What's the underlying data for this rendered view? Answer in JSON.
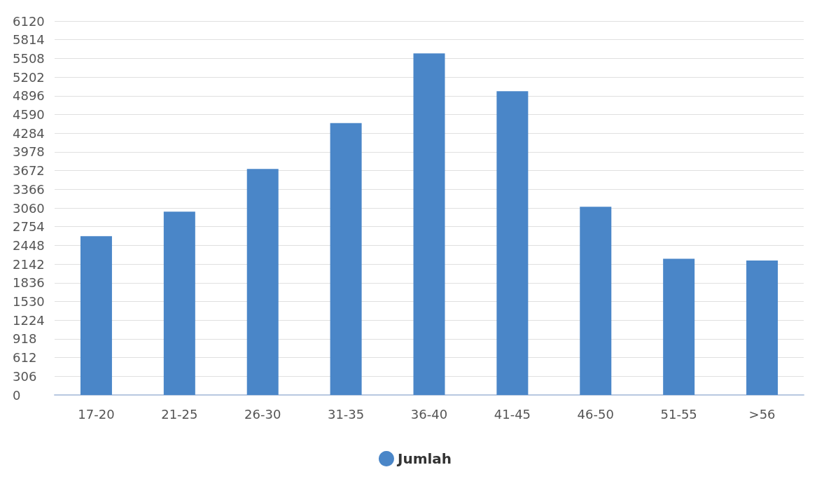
{
  "chart_data": {
    "type": "bar",
    "categories": [
      "17-20",
      "21-25",
      "26-30",
      "31-35",
      "36-40",
      "41-45",
      "46-50",
      "51-55",
      ">56"
    ],
    "series": [
      {
        "name": "Jumlah",
        "color": "#4a86c8",
        "values": [
          2600,
          3000,
          3700,
          4450,
          5590,
          4970,
          3080,
          2230,
          2200
        ]
      }
    ],
    "ylim": [
      0,
      6120
    ],
    "yticks": [
      0,
      306,
      612,
      918,
      1224,
      1530,
      1836,
      2142,
      2448,
      2754,
      3060,
      3366,
      3672,
      3978,
      4284,
      4590,
      4896,
      5202,
      5508,
      5814,
      6120
    ],
    "grid": "y",
    "legend": "bottom",
    "marker": "circle"
  }
}
